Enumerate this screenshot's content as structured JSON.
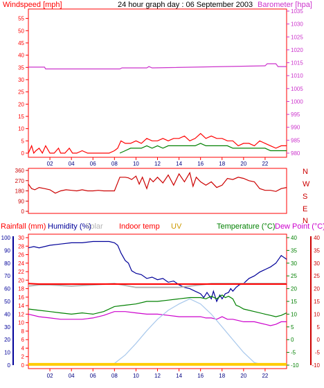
{
  "header": {
    "left_title": "Windspeed [mph]",
    "center_title": "24 hour graph day : 06 September 2003",
    "right_title": "Barometer [hpa]"
  },
  "colors": {
    "wind": "#ff0000",
    "gust": "#008000",
    "barometer": "#cc33cc",
    "direction": "#cc0000",
    "rain": "#ff0000",
    "humidity": "#000099",
    "solar": "#b4b4b4",
    "indoor": "#ff0000",
    "uv": "#cc9900",
    "temperature": "#008000",
    "dewpoint": "#cc00cc",
    "frame": "#ff0000"
  },
  "chart_data": [
    {
      "type": "line",
      "name": "wind-barometer",
      "title": "24 hour graph day : 06 September 2003",
      "ylabel_left": "Windspeed [mph]",
      "ylabel_right": "Barometer [hpa]",
      "x_ticks": [
        "02",
        "04",
        "06",
        "08",
        "10",
        "12",
        "14",
        "16",
        "18",
        "20",
        "22"
      ],
      "x_range": [
        0,
        24
      ],
      "y_left_ticks": [
        0,
        5,
        10,
        15,
        20,
        25,
        30,
        35,
        40,
        45,
        50,
        55
      ],
      "y_left_range": [
        0,
        58
      ],
      "y_right_ticks": [
        980,
        985,
        990,
        995,
        1000,
        1005,
        1010,
        1015,
        1020,
        1025,
        1030,
        1035
      ],
      "y_right_range": [
        980,
        1035
      ],
      "series": [
        {
          "key": "barometer",
          "axis": "right",
          "x": [
            0,
            1.5,
            1.6,
            8.5,
            8.7,
            11,
            11.2,
            11.5,
            22,
            22.2,
            23,
            23.2,
            24
          ],
          "values": [
            1013.3,
            1013.3,
            1012.6,
            1012.6,
            1013,
            1013,
            1013.5,
            1013,
            1013.8,
            1014.6,
            1014.6,
            1013.5,
            1013.5
          ]
        },
        {
          "key": "wind",
          "axis": "left",
          "x": [
            0,
            0.3,
            0.5,
            0.7,
            1,
            1.3,
            1.6,
            2,
            2.4,
            2.8,
            3,
            3.4,
            3.8,
            4.1,
            4.5,
            5,
            5.5,
            6,
            6.5,
            7,
            7.5,
            8,
            8.3,
            8.6,
            9,
            9.5,
            10,
            10.5,
            11,
            11.5,
            12,
            12.5,
            13,
            13.5,
            14,
            14.5,
            15,
            15.5,
            16,
            16.5,
            17,
            17.5,
            18,
            18.5,
            19,
            19.5,
            20,
            20.5,
            21,
            21.5,
            22,
            22.5,
            23,
            23.5,
            24
          ],
          "values": [
            0,
            3,
            0,
            1,
            2,
            0,
            3,
            0,
            0,
            2,
            0,
            0,
            2,
            0,
            0,
            1,
            0,
            0,
            0,
            0,
            0,
            1,
            2,
            5,
            4,
            4,
            5,
            4,
            6,
            5,
            5,
            6,
            5,
            6,
            6,
            7,
            5,
            6,
            8,
            6,
            7,
            6,
            6,
            5,
            5,
            3,
            4,
            4,
            3,
            5,
            4,
            3,
            2,
            3,
            3
          ]
        },
        {
          "key": "gust",
          "axis": "left",
          "x": [
            8.5,
            9,
            9.5,
            10,
            10.5,
            11,
            11.5,
            12,
            12.5,
            13,
            13.5,
            14,
            14.5,
            15,
            15.5,
            16,
            16.5,
            17,
            17.5,
            18,
            18.5,
            19,
            19.5,
            20,
            20.5,
            21,
            21.5,
            22,
            22.5,
            23,
            23.5,
            24
          ],
          "values": [
            0,
            1,
            2,
            2,
            2,
            3,
            2,
            3,
            2,
            3,
            3,
            3,
            3,
            3,
            3,
            4,
            3,
            3,
            3,
            3,
            3,
            2,
            2,
            2,
            2,
            2,
            2,
            2,
            1,
            1,
            1,
            1
          ]
        }
      ]
    },
    {
      "type": "line",
      "name": "wind-direction",
      "y_ticks": [
        0,
        90,
        180,
        270,
        360
      ],
      "y_range": [
        0,
        360
      ],
      "compass_labels": [
        "N",
        "W",
        "S",
        "E",
        "N"
      ],
      "series": [
        {
          "key": "direction",
          "x": [
            0,
            0.3,
            0.6,
            1,
            1.5,
            2,
            2.5,
            3,
            3.5,
            4,
            4.5,
            5,
            5.5,
            6,
            6.5,
            7,
            7.5,
            8,
            8.5,
            9,
            9.3,
            9.6,
            10,
            10.3,
            10.6,
            11,
            11.3,
            11.6,
            12,
            12.5,
            13,
            13.5,
            14,
            14.5,
            15,
            15.3,
            15.6,
            16,
            16.5,
            17,
            17.5,
            18,
            18.5,
            19,
            19.5,
            20,
            20.5,
            21,
            21.5,
            22,
            22.5,
            23,
            23.5,
            24
          ],
          "values": [
            240,
            200,
            190,
            210,
            200,
            190,
            160,
            180,
            190,
            185,
            180,
            190,
            180,
            180,
            185,
            180,
            180,
            180,
            300,
            300,
            295,
            280,
            310,
            240,
            300,
            200,
            290,
            260,
            300,
            250,
            320,
            230,
            330,
            260,
            340,
            220,
            300,
            260,
            230,
            260,
            210,
            230,
            290,
            280,
            300,
            290,
            270,
            260,
            200,
            185,
            185,
            175,
            200,
            210
          ]
        }
      ]
    },
    {
      "type": "line",
      "name": "weather",
      "x_ticks": [
        "02",
        "04",
        "06",
        "08",
        "10",
        "12",
        "14",
        "16",
        "18",
        "20",
        "22"
      ],
      "x_range": [
        0,
        24
      ],
      "legend": [
        "Rainfall (mm)",
        "Humidity (%)",
        "Solar",
        "Indoor temp",
        "UV",
        "Temperature (°C)",
        "Dew Point (°C)"
      ],
      "axis_rain_ticks": [
        0,
        2,
        4,
        6,
        8,
        10,
        12,
        14,
        16,
        18,
        20,
        22,
        24,
        26,
        28,
        30
      ],
      "axis_humidity_ticks": [
        0,
        10,
        20,
        30,
        40,
        50,
        60,
        70,
        80,
        90,
        100
      ],
      "axis_temperature_ticks": [
        -10,
        -5,
        0,
        5,
        10,
        15,
        20,
        25,
        30,
        35,
        40
      ],
      "y_range_temperature": [
        -10,
        40
      ],
      "y_range_humidity": [
        0,
        100
      ],
      "series": [
        {
          "key": "humidity",
          "axis": "humidity",
          "x": [
            0,
            0.5,
            1,
            2,
            3,
            4,
            5,
            6,
            7,
            7.5,
            8,
            8.3,
            8.6,
            9,
            9.3,
            9.6,
            10,
            10.5,
            11,
            11.5,
            12,
            12.5,
            13,
            13.5,
            14,
            14.5,
            15,
            15.5,
            16,
            16.3,
            16.6,
            17,
            17.2,
            17.5,
            17.8,
            18,
            18.3,
            18.6,
            18.8,
            19,
            19.3,
            19.6,
            20,
            20.5,
            21,
            21.5,
            22,
            22.5,
            23,
            23.5,
            24
          ],
          "values": [
            92,
            93,
            92,
            94,
            95,
            96,
            96,
            97,
            97,
            97,
            96,
            94,
            88,
            82,
            80,
            74,
            72,
            71,
            68,
            69,
            67,
            68,
            65,
            66,
            63,
            61,
            60,
            58,
            56,
            53,
            57,
            52,
            58,
            50,
            55,
            52,
            56,
            57,
            60,
            58,
            61,
            63,
            64,
            68,
            70,
            73,
            75,
            77,
            80,
            86,
            83
          ]
        },
        {
          "key": "solar",
          "axis": "humidity",
          "x": [
            0,
            1,
            2,
            4,
            6,
            8,
            10,
            12,
            14,
            15,
            16,
            17,
            18,
            20,
            22,
            24
          ],
          "values": [
            62,
            63,
            63,
            62,
            63,
            64,
            61,
            61,
            61,
            62,
            63,
            64,
            64,
            64,
            64,
            64
          ]
        },
        {
          "key": "indoor",
          "axis": "temperature",
          "x": [
            0,
            1,
            24
          ],
          "values": [
            22,
            21.8,
            21.8
          ]
        },
        {
          "key": "temperature",
          "axis": "temperature",
          "x": [
            0,
            1,
            2,
            3,
            4,
            5,
            6,
            7,
            8,
            9,
            10,
            11,
            12,
            13,
            14,
            15,
            16,
            16.5,
            17,
            17.5,
            18,
            18.3,
            18.6,
            19,
            19.3,
            19.6,
            20,
            21,
            22,
            22.5,
            23,
            23.5,
            24
          ],
          "values": [
            12,
            11.5,
            11,
            10.5,
            10,
            10.5,
            10,
            11,
            13,
            13.5,
            14,
            15,
            15,
            15.5,
            16,
            16.5,
            16.5,
            16,
            17,
            16,
            17.5,
            16.5,
            17,
            16,
            13.5,
            13,
            12,
            11,
            10,
            9.5,
            9,
            9.5,
            10.5
          ]
        },
        {
          "key": "dewpoint",
          "axis": "temperature",
          "x": [
            0,
            1,
            2,
            3,
            4,
            5,
            6,
            7,
            8,
            9,
            10,
            11,
            12,
            13,
            14,
            15,
            16,
            16.5,
            17,
            17.5,
            18,
            18.5,
            19,
            19.5,
            20,
            21,
            22,
            22.5,
            23,
            23.5,
            24
          ],
          "values": [
            10,
            9,
            8.5,
            8,
            8,
            8,
            8.5,
            9.5,
            11,
            11,
            10.5,
            10,
            10,
            9.5,
            9,
            9,
            9,
            8.5,
            8.5,
            8,
            9,
            8,
            8,
            7.5,
            7,
            7,
            6,
            5.5,
            6,
            7,
            7
          ]
        },
        {
          "key": "uv-radiation",
          "axis": "humidity",
          "x": [
            0,
            7.8,
            9,
            10,
            11,
            12,
            13,
            14,
            15,
            16,
            17,
            18,
            19,
            20,
            21,
            22,
            24
          ],
          "values": [
            0,
            0,
            8,
            17,
            27,
            36,
            43,
            48,
            52,
            48,
            40,
            30,
            20,
            10,
            2,
            0,
            0
          ]
        },
        {
          "key": "rain",
          "axis": "humidity",
          "x": [
            0,
            24
          ],
          "values": [
            0.6,
            0.6
          ]
        }
      ]
    }
  ]
}
